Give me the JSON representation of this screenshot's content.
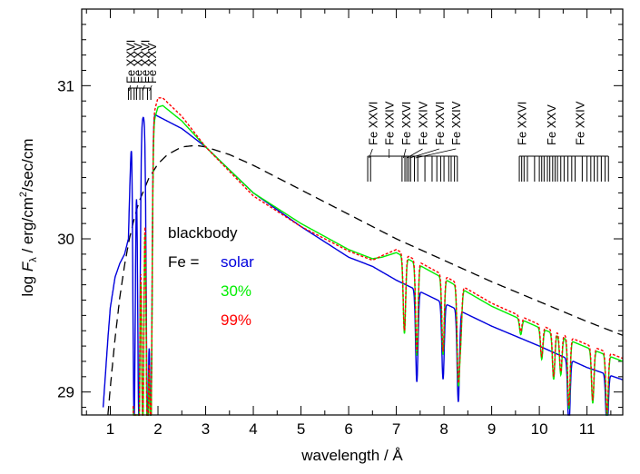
{
  "chart_data": {
    "type": "line",
    "xlabel": "wavelength / Å",
    "ylabel_parts": [
      "log ",
      "F",
      "λ",
      " / erg/cm",
      "2",
      "/sec/cm"
    ],
    "xlim": [
      0.4,
      11.75
    ],
    "ylim": [
      28.85,
      31.5
    ],
    "x_ticks": [
      1,
      2,
      3,
      4,
      5,
      6,
      7,
      8,
      9,
      10,
      11
    ],
    "x_minor_step": 0.5,
    "y_ticks": [
      29,
      30,
      31
    ],
    "y_minor_step": 0.1,
    "grid": false,
    "legend": {
      "blackbody": "blackbody",
      "fe_prefix": "Fe =",
      "entries": [
        "solar",
        "30%",
        "99%"
      ]
    },
    "series": [
      {
        "name": "blackbody",
        "color": "#000000",
        "dash": "dashed",
        "x": [
          0.95,
          1.0,
          1.1,
          1.2,
          1.3,
          1.4,
          1.5,
          1.6,
          1.8,
          2.0,
          2.2,
          2.5,
          2.8,
          3.0,
          3.5,
          4.0,
          4.5,
          5.0,
          6.0,
          7.0,
          8.0,
          9.0,
          10.0,
          11.0,
          11.75
        ],
        "y": [
          28.85,
          29.03,
          29.35,
          29.62,
          29.83,
          30.0,
          30.13,
          30.24,
          30.39,
          30.49,
          30.55,
          30.6,
          30.61,
          30.6,
          30.55,
          30.48,
          30.4,
          30.32,
          30.16,
          30.0,
          29.86,
          29.72,
          29.59,
          29.46,
          29.37
        ]
      },
      {
        "name": "solar",
        "color": "#0000dd",
        "x": [
          0.85,
          0.95,
          1.0,
          1.1,
          1.2,
          1.3,
          1.38,
          1.45,
          1.5,
          1.6,
          1.7,
          1.8,
          1.9,
          2.0,
          2.5,
          3.0,
          3.5,
          4.0,
          5.0,
          6.0,
          6.5,
          7.0,
          8.0,
          9.0,
          10.0,
          11.0,
          11.75
        ],
        "y": [
          28.9,
          29.35,
          29.55,
          29.75,
          29.84,
          29.9,
          30.0,
          30.8,
          30.82,
          30.78,
          30.8,
          30.78,
          30.82,
          30.8,
          30.72,
          30.6,
          30.45,
          30.3,
          30.08,
          29.88,
          29.82,
          29.73,
          29.58,
          29.43,
          29.3,
          29.16,
          29.08
        ]
      },
      {
        "name": "30%",
        "color": "#00ee00",
        "x": [
          1.48,
          1.55,
          1.65,
          1.75,
          1.85,
          2.0,
          2.1,
          2.5,
          3.0,
          3.5,
          4.0,
          5.0,
          6.0,
          6.5,
          6.7,
          7.0,
          8.0,
          9.0,
          10.0,
          11.0,
          11.75
        ],
        "y": [
          30.4,
          30.7,
          30.85,
          30.5,
          30.7,
          30.86,
          30.87,
          30.77,
          30.6,
          30.45,
          30.3,
          30.1,
          29.93,
          29.87,
          29.88,
          29.91,
          29.74,
          29.56,
          29.42,
          29.29,
          29.2
        ]
      },
      {
        "name": "99%",
        "color": "#ff0000",
        "dash": "dotted",
        "x": [
          1.48,
          1.55,
          1.65,
          1.75,
          1.85,
          2.0,
          2.1,
          2.5,
          3.0,
          3.5,
          4.0,
          5.0,
          6.0,
          6.5,
          6.7,
          7.0,
          8.0,
          9.0,
          10.0,
          11.0,
          11.75
        ],
        "y": [
          30.4,
          30.75,
          30.9,
          30.55,
          30.75,
          30.92,
          30.92,
          30.8,
          30.6,
          30.44,
          30.28,
          30.08,
          29.92,
          29.86,
          29.89,
          29.93,
          29.76,
          29.58,
          29.44,
          29.31,
          29.22
        ]
      }
    ],
    "absorption_lines": [
      {
        "x": 1.5,
        "depth": 2.0,
        "series": [
          "solar",
          "30%",
          "99%"
        ]
      },
      {
        "x": 1.55,
        "depth": 2.0,
        "series": [
          "30%",
          "99%"
        ]
      },
      {
        "x": 1.6,
        "depth": 2.0,
        "series": [
          "solar",
          "30%",
          "99%"
        ]
      },
      {
        "x": 1.68,
        "depth": 2.0,
        "series": [
          "30%",
          "99%"
        ]
      },
      {
        "x": 1.78,
        "depth": 2.0,
        "series": [
          "solar",
          "30%",
          "99%"
        ]
      },
      {
        "x": 1.85,
        "depth": 2.0,
        "series": [
          "solar",
          "30%",
          "99%"
        ]
      },
      {
        "x": 7.17,
        "depth": 0.5,
        "series": [
          "30%",
          "99%"
        ]
      },
      {
        "x": 7.43,
        "depth": 0.6,
        "series": [
          "solar",
          "30%",
          "99%"
        ]
      },
      {
        "x": 7.98,
        "depth": 0.5,
        "series": [
          "solar",
          "30%",
          "99%"
        ]
      },
      {
        "x": 8.3,
        "depth": 0.6,
        "series": [
          "solar",
          "30%",
          "99%"
        ]
      },
      {
        "x": 8.35,
        "depth": 0.3,
        "series": [
          "30%",
          "99%"
        ]
      },
      {
        "x": 9.61,
        "depth": 0.1,
        "series": [
          "30%",
          "99%"
        ]
      },
      {
        "x": 10.05,
        "depth": 0.2,
        "series": [
          "30%",
          "99%"
        ]
      },
      {
        "x": 10.3,
        "depth": 0.3,
        "series": [
          "30%",
          "99%"
        ]
      },
      {
        "x": 10.45,
        "depth": 0.25,
        "series": [
          "30%",
          "99%"
        ]
      },
      {
        "x": 10.62,
        "depth": 0.45,
        "series": [
          "solar",
          "30%",
          "99%"
        ]
      },
      {
        "x": 11.12,
        "depth": 0.35,
        "series": [
          "30%",
          "99%"
        ]
      },
      {
        "x": 11.42,
        "depth": 0.4,
        "series": [
          "solar",
          "30%",
          "99%"
        ]
      }
    ],
    "ion_labels": {
      "group1": [
        "Fe XXVI",
        "Fe XXV",
        "Fe XXVI",
        "Fe XXV"
      ],
      "group2": [
        "Fe XXVI",
        "Fe XXIV",
        "Fe XXVI",
        "Fe XXIV",
        "Fe XXVI",
        "Fe XXIV"
      ],
      "group3": [
        "Fe XXVI",
        "Fe XXV",
        "Fe XXIV"
      ]
    },
    "ion_marker_groups": {
      "group1": [
        1.38,
        1.43,
        1.5,
        1.55,
        1.62,
        1.68,
        1.78,
        1.85
      ],
      "group2": [
        6.4,
        6.46,
        7.12,
        7.18,
        7.22,
        7.26,
        7.3,
        7.38,
        7.45,
        7.6,
        7.75,
        7.85,
        7.93,
        8.0,
        8.1,
        8.15,
        8.22,
        8.28
      ],
      "group3": [
        9.58,
        9.63,
        9.68,
        9.75,
        9.9,
        10.0,
        10.05,
        10.1,
        10.17,
        10.22,
        10.28,
        10.33,
        10.38,
        10.45,
        10.52,
        10.6,
        10.68,
        10.75,
        10.9,
        11.0,
        11.08,
        11.15,
        11.22,
        11.3,
        11.38,
        11.45
      ]
    }
  }
}
